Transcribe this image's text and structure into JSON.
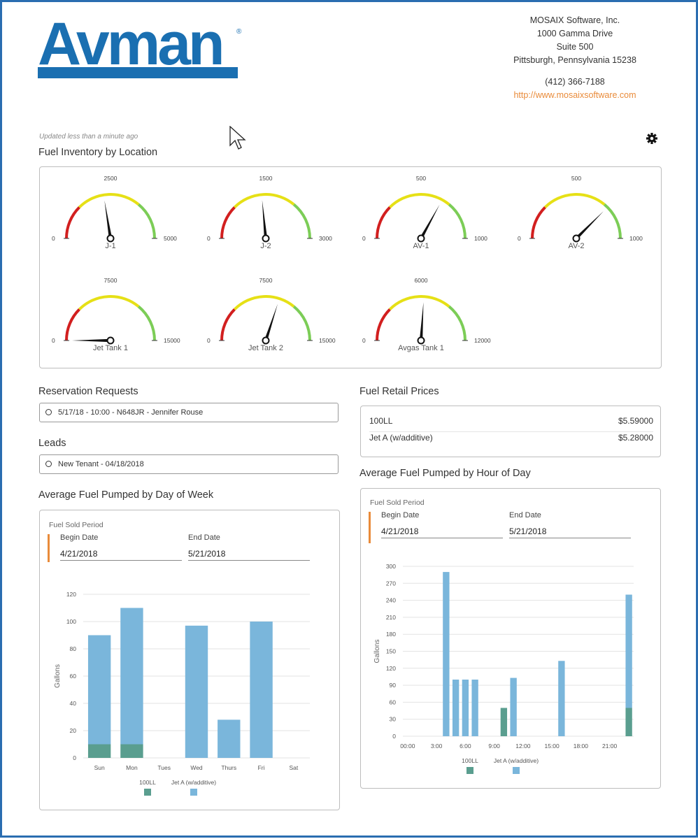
{
  "brand": {
    "logo_text": "Avman",
    "registered": "®",
    "logo_color": "#1a6fb1"
  },
  "company": {
    "name": "MOSAIX Software, Inc.",
    "address1": "1000 Gamma Drive",
    "address2": "Suite 500",
    "city": "Pittsburgh, Pennsylvania 15238",
    "phone": "(412) 366-7188",
    "website": "http://www.mosaixsoftware.com"
  },
  "status": {
    "updated": "Updated less than a minute ago"
  },
  "inventory": {
    "title": "Fuel Inventory by Location",
    "gauges": [
      {
        "name": "J-1",
        "min": "0",
        "mid": "2500",
        "max": "5000",
        "fraction": 0.45
      },
      {
        "name": "J-2",
        "min": "0",
        "mid": "1500",
        "max": "3000",
        "fraction": 0.47
      },
      {
        "name": "AV-1",
        "min": "0",
        "mid": "500",
        "max": "1000",
        "fraction": 0.66
      },
      {
        "name": "AV-2",
        "min": "0",
        "mid": "500",
        "max": "1000",
        "fraction": 0.75
      },
      {
        "name": "Jet Tank 1",
        "min": "0",
        "mid": "7500",
        "max": "15000",
        "fraction": 0.0
      },
      {
        "name": "Jet Tank 2",
        "min": "0",
        "mid": "7500",
        "max": "15000",
        "fraction": 0.6
      },
      {
        "name": "Avgas Tank 1",
        "min": "0",
        "mid": "6000",
        "max": "12000",
        "fraction": 0.52
      }
    ],
    "colors": {
      "red": "#d21f1f",
      "yellow": "#e6e016",
      "green": "#7ccd57"
    }
  },
  "reservations": {
    "title": "Reservation Requests",
    "items": [
      "5/17/18 - 10:00 - N648JR - Jennifer Rouse"
    ]
  },
  "leads": {
    "title": "Leads",
    "items": [
      "New Tenant - 04/18/2018"
    ]
  },
  "prices": {
    "title": "Fuel Retail Prices",
    "rows": [
      {
        "fuel": "100LL",
        "price": "$5.59000"
      },
      {
        "fuel": "Jet A (w/additive)",
        "price": "$5.28000"
      }
    ]
  },
  "day_chart": {
    "title": "Average Fuel Pumped by Day of Week",
    "period_label": "Fuel Sold Period",
    "begin_label": "Begin Date",
    "begin_value": "4/21/2018",
    "end_label": "End Date",
    "end_value": "5/21/2018"
  },
  "hour_chart": {
    "title": "Average Fuel Pumped by Hour of Day",
    "period_label": "Fuel Sold Period",
    "begin_label": "Begin Date",
    "begin_value": "4/21/2018",
    "end_label": "End Date",
    "end_value": "5/21/2018"
  },
  "chart_data": [
    {
      "type": "bar",
      "stacked": true,
      "categories": [
        "Sun",
        "Mon",
        "Tues",
        "Wed",
        "Thurs",
        "Fri",
        "Sat"
      ],
      "series": [
        {
          "name": "100LL",
          "color": "#5a9e8f",
          "values": [
            10,
            10,
            0,
            0,
            0,
            0,
            0
          ]
        },
        {
          "name": "Jet A (w/additive)",
          "color": "#7ab6db",
          "values": [
            80,
            100,
            0,
            97,
            28,
            100,
            0
          ]
        }
      ],
      "ylabel": "Gallons",
      "ylim": [
        0,
        120
      ],
      "yticks": [
        0,
        20,
        40,
        60,
        80,
        100,
        120
      ],
      "grid": true,
      "legend": "bottom"
    },
    {
      "type": "bar",
      "stacked": true,
      "x": [
        0,
        1,
        2,
        3,
        4,
        5,
        6,
        7,
        8,
        9,
        10,
        11,
        12,
        13,
        14,
        15,
        16,
        17,
        18,
        19,
        20,
        21,
        22,
        23
      ],
      "xticks": [
        "00:00",
        "3:00",
        "6:00",
        "9:00",
        "12:00",
        "15:00",
        "18:00",
        "21:00"
      ],
      "series": [
        {
          "name": "100LL",
          "color": "#5a9e8f",
          "values": [
            0,
            0,
            0,
            0,
            0,
            0,
            0,
            0,
            0,
            0,
            50,
            0,
            0,
            0,
            0,
            0,
            0,
            0,
            0,
            0,
            0,
            0,
            0,
            50
          ]
        },
        {
          "name": "Jet A (w/additive)",
          "color": "#7ab6db",
          "values": [
            0,
            0,
            0,
            0,
            290,
            100,
            100,
            100,
            0,
            0,
            0,
            103,
            0,
            0,
            0,
            0,
            133,
            0,
            0,
            0,
            0,
            0,
            0,
            200
          ]
        }
      ],
      "ylabel": "Gallons",
      "ylim": [
        0,
        300
      ],
      "yticks": [
        0,
        30,
        60,
        90,
        120,
        150,
        180,
        210,
        240,
        270,
        300
      ],
      "grid": true,
      "legend": "bottom"
    }
  ]
}
